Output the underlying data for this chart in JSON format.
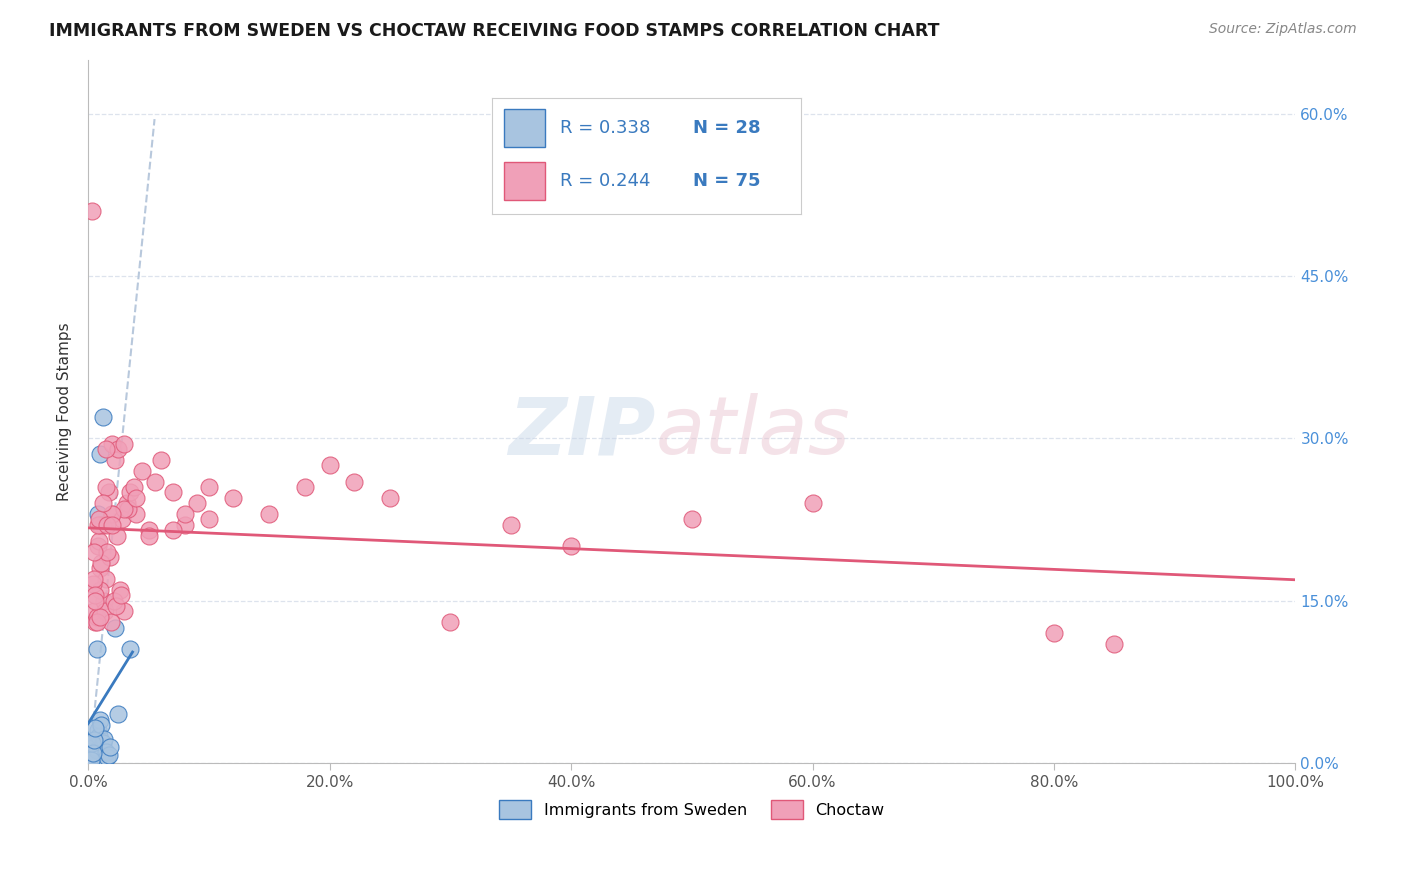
{
  "title": "IMMIGRANTS FROM SWEDEN VS CHOCTAW RECEIVING FOOD STAMPS CORRELATION CHART",
  "source": "Source: ZipAtlas.com",
  "ylabel": "Receiving Food Stamps",
  "xlim": [
    0,
    100
  ],
  "ylim": [
    0,
    65
  ],
  "xticks": [
    0,
    20,
    40,
    60,
    80,
    100
  ],
  "xticklabels": [
    "0.0%",
    "20.0%",
    "40.0%",
    "60.0%",
    "80.0%",
    "100.0%"
  ],
  "yticks": [
    0,
    15,
    30,
    45,
    60
  ],
  "yticklabels": [
    "0.0%",
    "15.0%",
    "30.0%",
    "45.0%",
    "60.0%"
  ],
  "color_sweden": "#a8c4e0",
  "color_choctaw": "#f0a0b8",
  "line_color_sweden": "#3a7abf",
  "line_color_choctaw": "#e05878",
  "trend_line_color": "#b8c8dc",
  "background_color": "#ffffff",
  "grid_color": "#dde3ed",
  "sweden_points": [
    [
      0.3,
      0.5
    ],
    [
      0.4,
      2.0
    ],
    [
      0.5,
      1.5
    ],
    [
      0.6,
      0.8
    ],
    [
      0.7,
      1.2
    ],
    [
      0.8,
      3.0
    ],
    [
      0.9,
      2.5
    ],
    [
      1.0,
      4.0
    ],
    [
      1.1,
      3.5
    ],
    [
      1.2,
      1.8
    ],
    [
      1.3,
      2.2
    ],
    [
      1.4,
      0.3
    ],
    [
      1.5,
      1.0
    ],
    [
      1.6,
      0.5
    ],
    [
      1.7,
      0.7
    ],
    [
      1.8,
      1.5
    ],
    [
      2.2,
      12.5
    ],
    [
      2.5,
      4.5
    ],
    [
      0.2,
      0.3
    ],
    [
      0.3,
      1.8
    ],
    [
      0.4,
      0.9
    ],
    [
      0.5,
      2.1
    ],
    [
      0.6,
      3.2
    ],
    [
      0.7,
      10.5
    ],
    [
      0.8,
      23.0
    ],
    [
      1.0,
      28.5
    ],
    [
      1.2,
      32.0
    ],
    [
      3.5,
      10.5
    ]
  ],
  "choctaw_points": [
    [
      0.5,
      14.0
    ],
    [
      0.8,
      20.0
    ],
    [
      1.0,
      18.0
    ],
    [
      1.2,
      22.0
    ],
    [
      1.3,
      15.0
    ],
    [
      1.5,
      17.0
    ],
    [
      1.7,
      25.0
    ],
    [
      1.8,
      19.0
    ],
    [
      2.0,
      23.0
    ],
    [
      2.2,
      28.0
    ],
    [
      2.4,
      21.0
    ],
    [
      2.6,
      16.0
    ],
    [
      2.8,
      22.5
    ],
    [
      3.0,
      14.0
    ],
    [
      3.2,
      24.0
    ],
    [
      3.5,
      25.0
    ],
    [
      3.8,
      25.5
    ],
    [
      4.0,
      23.0
    ],
    [
      4.5,
      27.0
    ],
    [
      5.0,
      21.5
    ],
    [
      5.5,
      26.0
    ],
    [
      6.0,
      28.0
    ],
    [
      7.0,
      25.0
    ],
    [
      8.0,
      22.0
    ],
    [
      9.0,
      24.0
    ],
    [
      10.0,
      22.5
    ],
    [
      12.0,
      24.5
    ],
    [
      15.0,
      23.0
    ],
    [
      18.0,
      25.5
    ],
    [
      20.0,
      27.5
    ],
    [
      22.0,
      26.0
    ],
    [
      25.0,
      24.5
    ],
    [
      30.0,
      13.0
    ],
    [
      35.0,
      22.0
    ],
    [
      40.0,
      20.0
    ],
    [
      50.0,
      22.5
    ],
    [
      60.0,
      24.0
    ],
    [
      0.6,
      13.0
    ],
    [
      0.7,
      13.5
    ],
    [
      0.9,
      20.5
    ],
    [
      1.0,
      16.0
    ],
    [
      1.1,
      18.5
    ],
    [
      1.4,
      14.0
    ],
    [
      1.6,
      19.5
    ],
    [
      1.9,
      13.0
    ],
    [
      2.1,
      15.0
    ],
    [
      2.3,
      14.5
    ],
    [
      2.7,
      15.5
    ],
    [
      3.3,
      23.5
    ],
    [
      0.4,
      16.5
    ],
    [
      0.5,
      17.0
    ],
    [
      0.6,
      15.5
    ],
    [
      1.0,
      22.0
    ],
    [
      1.5,
      25.5
    ],
    [
      2.0,
      29.5
    ],
    [
      2.5,
      29.0
    ],
    [
      3.0,
      23.5
    ],
    [
      5.0,
      21.0
    ],
    [
      8.0,
      23.0
    ],
    [
      0.3,
      51.0
    ],
    [
      0.5,
      19.5
    ],
    [
      0.7,
      13.0
    ],
    [
      1.0,
      13.5
    ],
    [
      1.5,
      29.0
    ],
    [
      2.0,
      23.0
    ],
    [
      3.0,
      29.5
    ],
    [
      4.0,
      24.5
    ],
    [
      7.0,
      21.5
    ],
    [
      10.0,
      25.5
    ],
    [
      0.6,
      15.0
    ],
    [
      0.8,
      22.0
    ],
    [
      0.9,
      22.5
    ],
    [
      1.2,
      24.0
    ],
    [
      1.6,
      22.0
    ],
    [
      2.0,
      22.0
    ],
    [
      80.0,
      12.0
    ],
    [
      85.0,
      11.0
    ]
  ]
}
